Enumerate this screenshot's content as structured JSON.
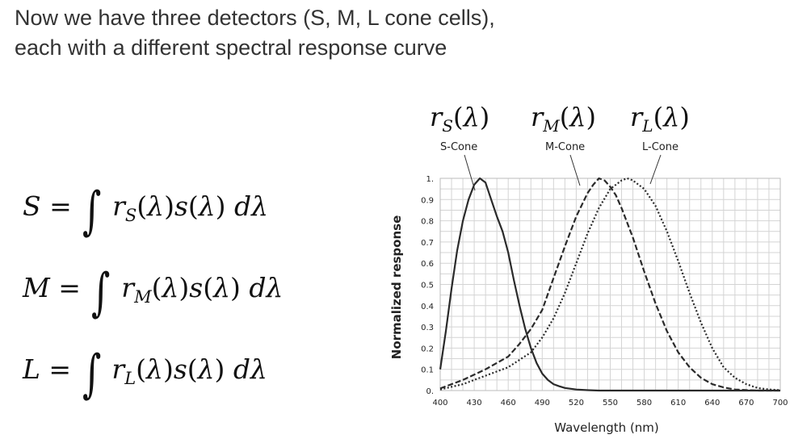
{
  "slide": {
    "title_line1": "Now we have three detectors (S, M, L cone cells),",
    "title_line2": "each with a different spectral response curve"
  },
  "equations": [
    {
      "lhs": "S",
      "sub": "S"
    },
    {
      "lhs": "M",
      "sub": "M"
    },
    {
      "lhs": "L",
      "sub": "L"
    }
  ],
  "curve_labels": [
    {
      "math_sub": "S",
      "tag": "S-Cone"
    },
    {
      "math_sub": "M",
      "tag": "M-Cone"
    },
    {
      "math_sub": "L",
      "tag": "L-Cone"
    }
  ],
  "chart_data": {
    "type": "line",
    "xlabel": "Wavelength (nm)",
    "ylabel": "Normalized response",
    "xlim": [
      400,
      700
    ],
    "ylim": [
      0,
      1
    ],
    "xticks": [
      "400",
      "430",
      "460",
      "490",
      "520",
      "550",
      "580",
      "610",
      "640",
      "670",
      "700"
    ],
    "yticks": [
      "0.",
      "0.1",
      "0.2",
      "0.3",
      "0.4",
      "0.5",
      "0.6",
      "0.7",
      "0.8",
      "0.9",
      "1."
    ],
    "grid": true,
    "series": [
      {
        "name": "S-Cone",
        "style": "solid",
        "x": [
          400,
          405,
          410,
          415,
          420,
          425,
          430,
          435,
          440,
          445,
          450,
          455,
          460,
          465,
          470,
          475,
          480,
          485,
          490,
          495,
          500,
          505,
          510,
          520,
          530,
          540,
          560,
          600,
          650,
          700
        ],
        "y": [
          0.1,
          0.28,
          0.48,
          0.66,
          0.8,
          0.9,
          0.97,
          1.0,
          0.98,
          0.9,
          0.82,
          0.75,
          0.65,
          0.52,
          0.4,
          0.29,
          0.2,
          0.13,
          0.08,
          0.05,
          0.03,
          0.02,
          0.012,
          0.005,
          0.002,
          0.0,
          0.0,
          0.0,
          0.0,
          0.0
        ]
      },
      {
        "name": "M-Cone",
        "style": "dashed",
        "x": [
          400,
          420,
          440,
          460,
          470,
          480,
          490,
          500,
          510,
          520,
          530,
          535,
          540,
          545,
          550,
          555,
          560,
          570,
          580,
          590,
          600,
          610,
          620,
          630,
          640,
          650,
          660,
          680,
          700
        ],
        "y": [
          0.01,
          0.05,
          0.1,
          0.16,
          0.22,
          0.29,
          0.38,
          0.53,
          0.68,
          0.82,
          0.93,
          0.97,
          1.0,
          0.99,
          0.96,
          0.92,
          0.86,
          0.72,
          0.56,
          0.41,
          0.28,
          0.18,
          0.11,
          0.06,
          0.03,
          0.015,
          0.005,
          0.0,
          0.0
        ]
      },
      {
        "name": "L-Cone",
        "style": "dotted",
        "x": [
          400,
          420,
          440,
          460,
          480,
          490,
          500,
          510,
          520,
          530,
          540,
          550,
          560,
          565,
          570,
          580,
          590,
          600,
          610,
          620,
          630,
          640,
          650,
          660,
          670,
          680,
          690,
          700
        ],
        "y": [
          0.005,
          0.03,
          0.07,
          0.11,
          0.18,
          0.25,
          0.34,
          0.46,
          0.6,
          0.74,
          0.86,
          0.95,
          0.99,
          1.0,
          0.99,
          0.95,
          0.87,
          0.75,
          0.61,
          0.46,
          0.32,
          0.2,
          0.11,
          0.06,
          0.03,
          0.012,
          0.005,
          0.002
        ]
      }
    ]
  }
}
